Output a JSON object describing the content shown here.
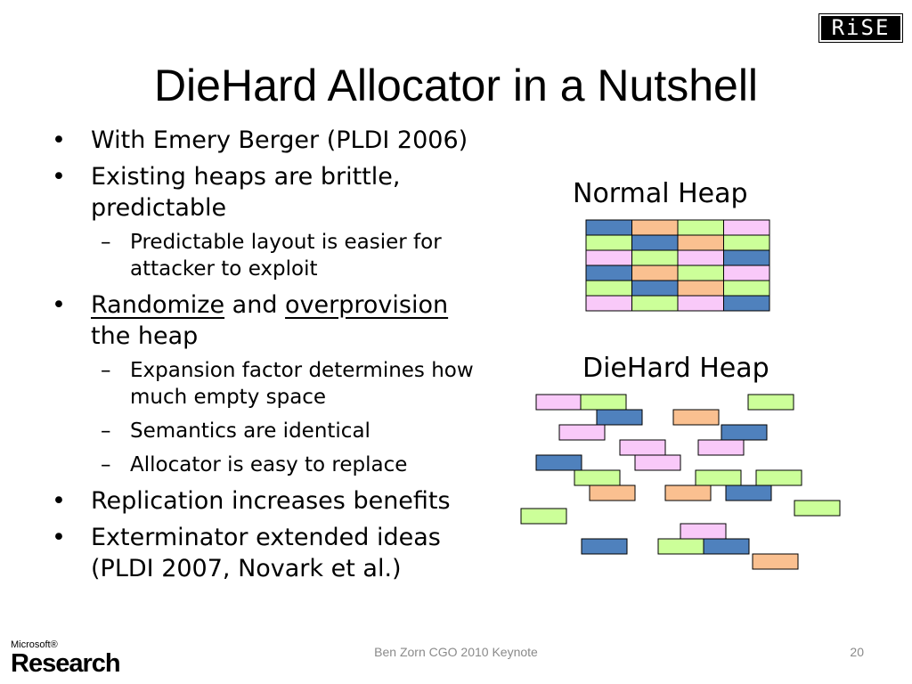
{
  "slide": {
    "title": "DieHard Allocator in a Nutshell",
    "logo_text": "RiSE",
    "bullets": {
      "b1": "With Emery Berger (PLDI 2006)",
      "b2_line1": "Existing heaps are brittle,",
      "b2_line2": "predictable",
      "b2_sub1_line1": "Predictable layout is easier for",
      "b2_sub1_line2": "attacker to exploit",
      "b3_randomize": "Randomize",
      "b3_and": " and ",
      "b3_overprovision": "overprovision",
      "b3_line2": "the heap",
      "b3_sub1_line1": "Expansion factor determines how",
      "b3_sub1_line2": "much empty space",
      "b3_sub2": "Semantics are identical",
      "b3_sub3": "Allocator is easy to replace",
      "b4": "Replication increases benefits",
      "b5_line1": "Exterminator extended ideas",
      "b5_line2": "(PLDI 2007, Novark et al.)"
    },
    "bullet_glyph": "•",
    "dash_glyph": "–",
    "normal_heap_label": "Normal Heap",
    "diehard_heap_label": "DieHard Heap",
    "footer": "Ben Zorn CGO 2010 Keynote",
    "page_number": "20",
    "ms_logo_small": "Microsoft®",
    "ms_logo_big": "Research"
  },
  "colors": {
    "blue": "#4f81bd",
    "orange": "#fac090",
    "green": "#ccff99",
    "pink": "#f9c9f9",
    "outline": "#000000"
  },
  "normal_heap_grid": [
    [
      "blue",
      "orange",
      "green",
      "pink"
    ],
    [
      "green",
      "blue",
      "orange",
      "green"
    ],
    [
      "pink",
      "green",
      "pink",
      "blue"
    ],
    [
      "blue",
      "orange",
      "green",
      "pink"
    ],
    [
      "green",
      "blue",
      "orange",
      "green"
    ],
    [
      "pink",
      "green",
      "pink",
      "blue"
    ]
  ]
}
